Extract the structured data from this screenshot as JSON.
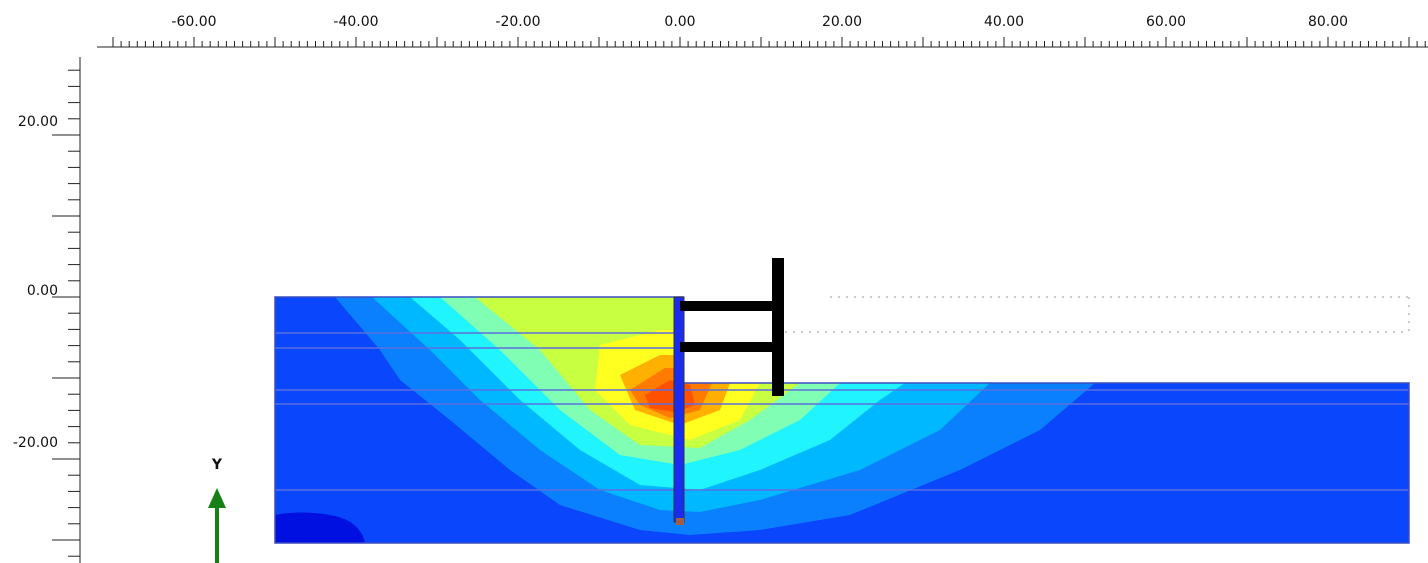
{
  "rulers": {
    "x_labels": [
      "-60.00",
      "-40.00",
      "-20.00",
      "0.00",
      "20.00",
      "40.00",
      "60.00",
      "80.00"
    ],
    "y_labels": [
      "20.00",
      "0.00",
      "-20.00"
    ]
  },
  "axis_label": "Y"
}
